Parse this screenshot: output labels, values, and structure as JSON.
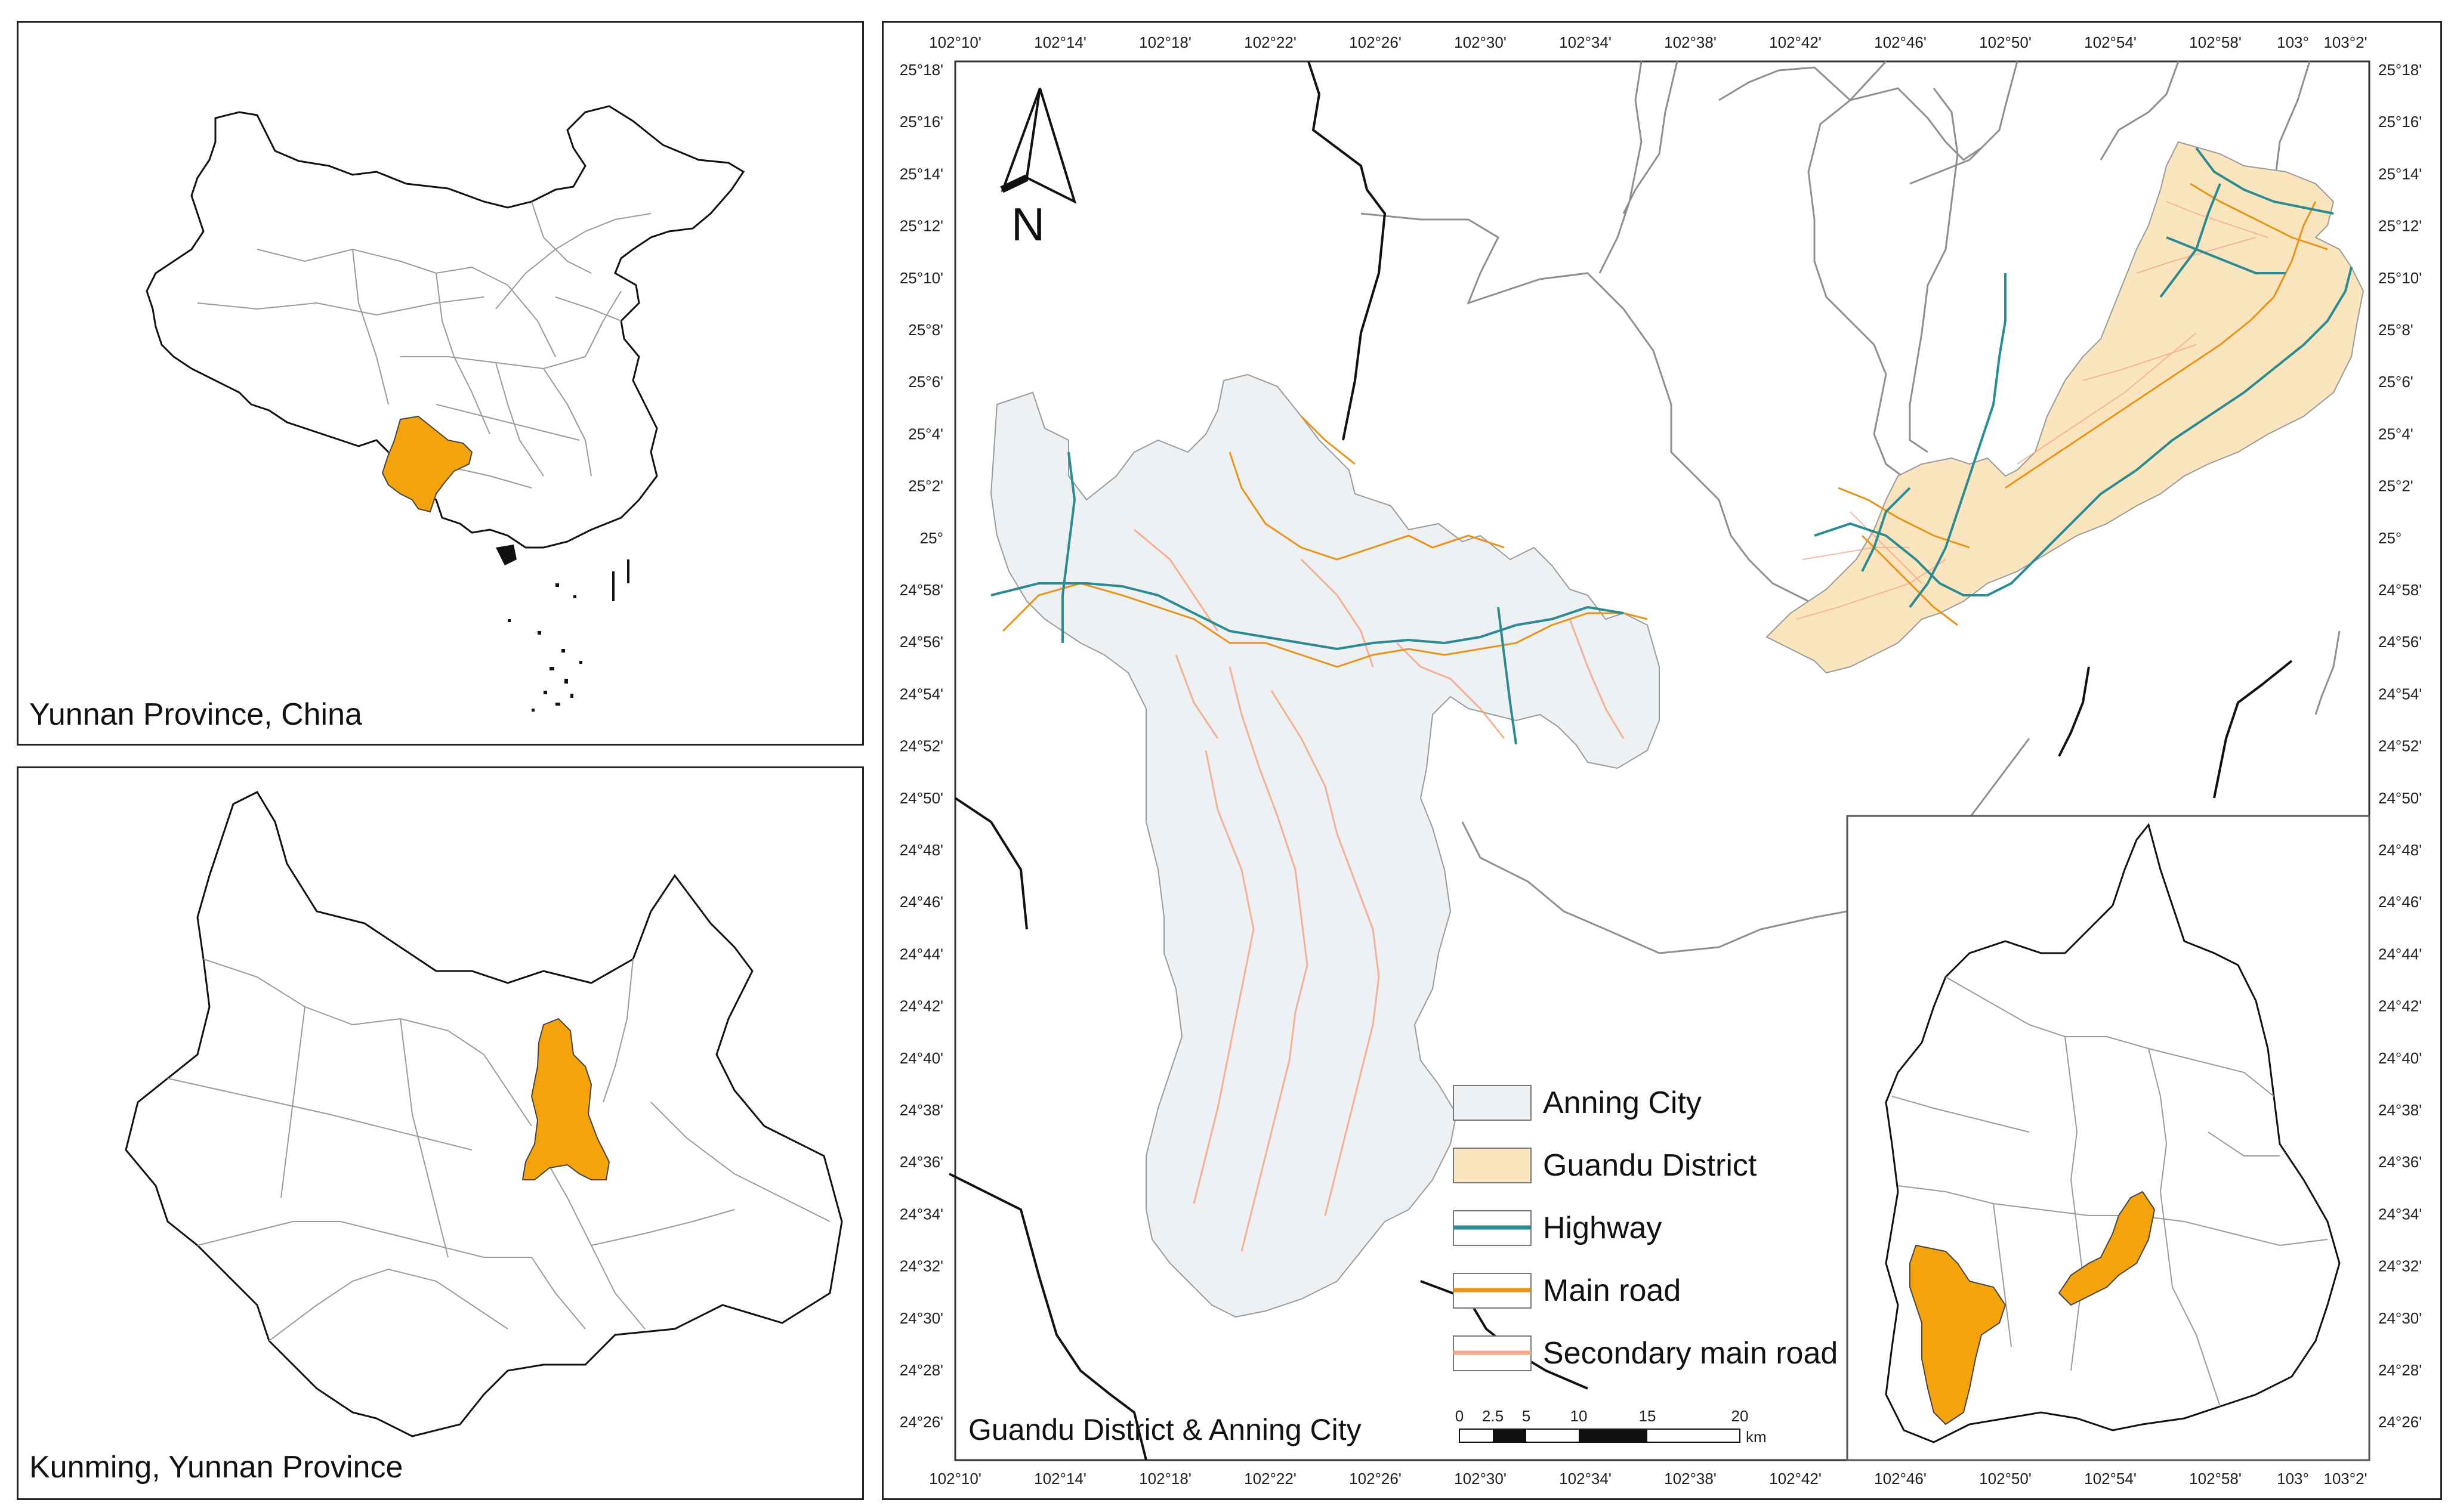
{
  "panels": {
    "china": {
      "caption": "Yunnan Province, China"
    },
    "yunnan": {
      "caption": "Kunming, Yunnan Province"
    },
    "main": {
      "caption": "Guandu District & Anning City"
    }
  },
  "colors": {
    "highlight": "#F5A30B",
    "anning_fill": "#EEF1F3",
    "guandu_fill": "#FBE5BE",
    "highway": "#2B8A92",
    "main_road": "#E8931A",
    "secondary_road": "#F5A98A",
    "boundary": "#888888",
    "admin_boundary": "#111111"
  },
  "north_arrow": {
    "label": "N"
  },
  "top_ticks": [
    "102°10'",
    "102°14'",
    "102°18'",
    "102°22'",
    "102°26'",
    "102°30'",
    "102°34'",
    "102°38'",
    "102°42'",
    "102°46'",
    "102°50'",
    "102°54'",
    "102°58'",
    "103°",
    "103°2'"
  ],
  "bottom_ticks": [
    "102°10'",
    "102°14'",
    "102°18'",
    "102°22'",
    "102°26'",
    "102°30'",
    "102°34'",
    "102°38'",
    "102°42'",
    "102°46'",
    "102°50'",
    "102°54'",
    "102°58'",
    "103°",
    "103°2'"
  ],
  "left_ticks": [
    "25°18'",
    "25°16'",
    "25°14'",
    "25°12'",
    "25°10'",
    "25°8'",
    "25°6'",
    "25°4'",
    "25°2'",
    "25°",
    "24°58'",
    "24°56'",
    "24°54'",
    "24°52'",
    "24°50'",
    "24°48'",
    "24°46'",
    "24°44'",
    "24°42'",
    "24°40'",
    "24°38'",
    "24°36'",
    "24°34'",
    "24°32'",
    "24°30'",
    "24°28'",
    "24°26'"
  ],
  "right_ticks": [
    "25°18'",
    "25°16'",
    "25°14'",
    "25°12'",
    "25°10'",
    "25°8'",
    "25°6'",
    "25°4'",
    "25°2'",
    "25°",
    "24°58'",
    "24°56'",
    "24°54'",
    "24°52'",
    "24°50'",
    "24°48'",
    "24°46'",
    "24°44'",
    "24°42'",
    "24°40'",
    "24°38'",
    "24°36'",
    "24°34'",
    "24°32'",
    "24°30'",
    "24°28'",
    "24°26'"
  ],
  "legend": [
    {
      "label": "Anning City",
      "kind": "area",
      "color": "#EEF1F3"
    },
    {
      "label": "Guandu District",
      "kind": "area",
      "color": "#FBE5BE"
    },
    {
      "label": "Highway",
      "kind": "line",
      "color": "#2B8A92"
    },
    {
      "label": "Main road",
      "kind": "line",
      "color": "#E8931A"
    },
    {
      "label": "Secondary main road",
      "kind": "line",
      "color": "#F5A98A"
    }
  ],
  "scale_bar": {
    "labels": [
      "0",
      "2.5",
      "5",
      "10",
      "15",
      "20"
    ],
    "unit": "km"
  }
}
